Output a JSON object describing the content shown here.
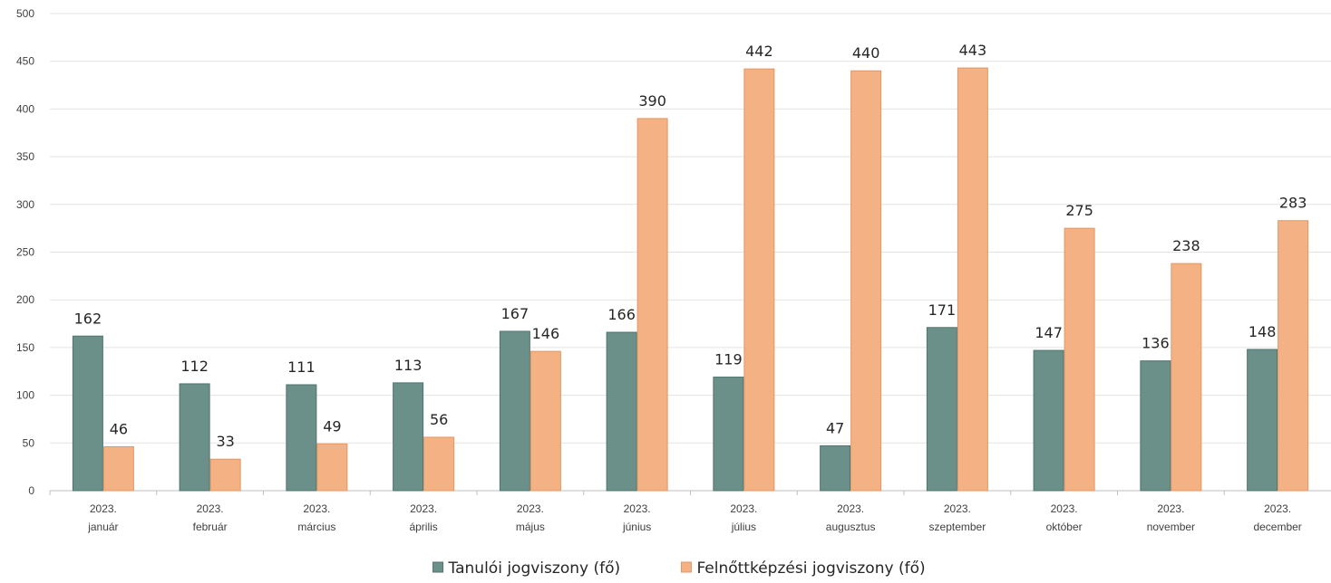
{
  "chart_data": {
    "type": "bar",
    "title": "",
    "xlabel": "",
    "ylabel": "",
    "ylim": [
      0,
      500
    ],
    "yticks": [
      0,
      50,
      100,
      150,
      200,
      250,
      300,
      350,
      400,
      450,
      500
    ],
    "grid": true,
    "legend_position": "bottom",
    "categories": [
      [
        "2023.",
        "január"
      ],
      [
        "2023.",
        "február"
      ],
      [
        "2023.",
        "március"
      ],
      [
        "2023.",
        "április"
      ],
      [
        "2023.",
        "május"
      ],
      [
        "2023.",
        "június"
      ],
      [
        "2023.",
        "július"
      ],
      [
        "2023.",
        "augusztus"
      ],
      [
        "2023.",
        "szeptember"
      ],
      [
        "2023.",
        "október"
      ],
      [
        "2023.",
        "november"
      ],
      [
        "2023.",
        "december"
      ]
    ],
    "series": [
      {
        "name": "Tanulói jogviszony (fő)",
        "color": "#6a9089",
        "values": [
          162,
          112,
          111,
          113,
          167,
          166,
          119,
          47,
          171,
          147,
          136,
          148
        ]
      },
      {
        "name": "Felnőttképzési jogviszony (fő)",
        "color": "#f4b183",
        "values": [
          46,
          33,
          49,
          56,
          146,
          390,
          442,
          440,
          443,
          275,
          238,
          283
        ]
      }
    ]
  }
}
